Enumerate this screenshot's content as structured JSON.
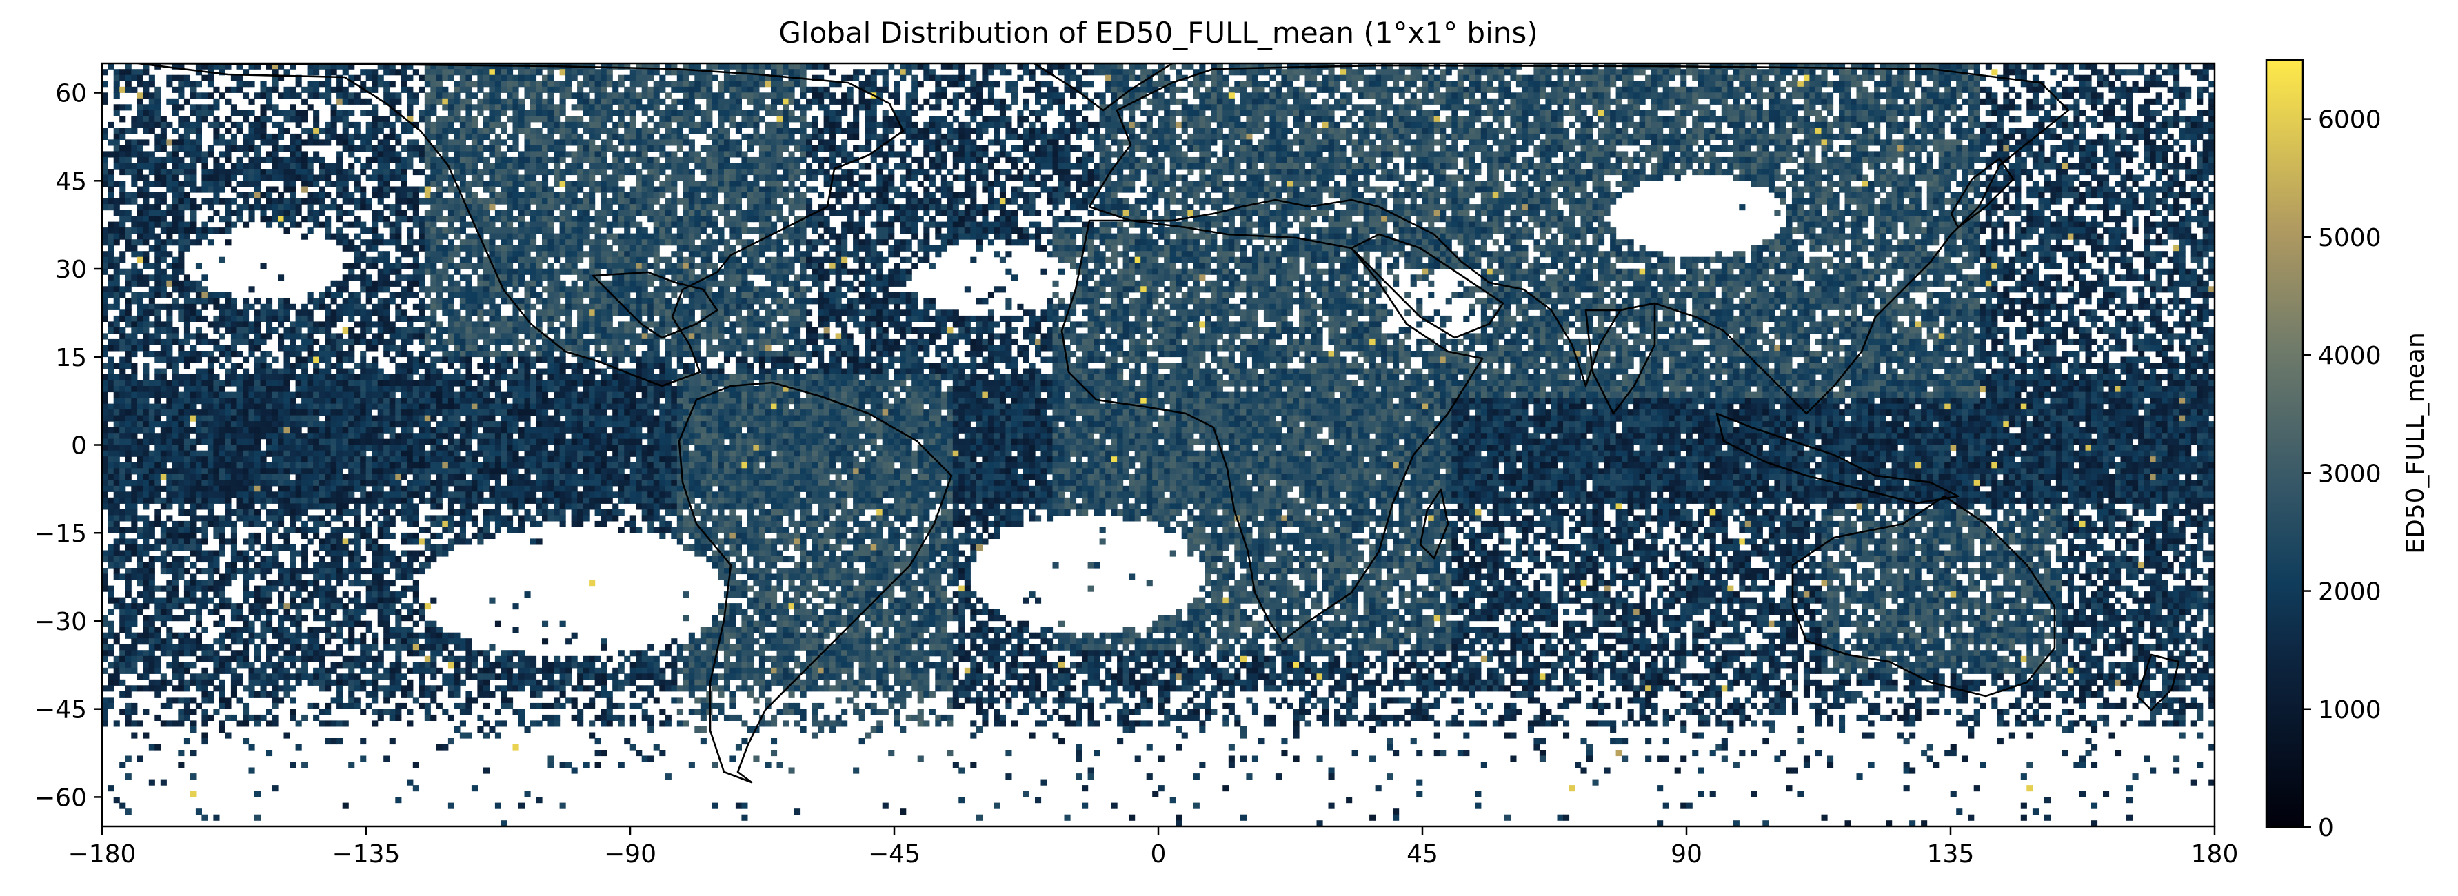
{
  "chart_data": {
    "type": "heatmap",
    "title": "Global Distribution of ED50_FULL_mean (1°x1° bins)",
    "xlabel": "",
    "ylabel": "",
    "xlim": [
      -180,
      180
    ],
    "ylim": [
      -65,
      65
    ],
    "x_ticks": [
      -180,
      -135,
      -90,
      -45,
      0,
      45,
      90,
      135,
      180
    ],
    "x_tick_labels": [
      "−180",
      "−135",
      "−90",
      "−45",
      "0",
      "45",
      "90",
      "135",
      "180"
    ],
    "y_ticks": [
      60,
      45,
      30,
      15,
      0,
      -15,
      -30,
      -45,
      -60
    ],
    "y_tick_labels": [
      "60",
      "45",
      "30",
      "15",
      "0",
      "−15",
      "−30",
      "−45",
      "−60"
    ],
    "bin_size_deg": 1,
    "grid": false,
    "colorbar": {
      "label": "ED50_FULL_mean",
      "range": [
        0,
        6500
      ],
      "ticks": [
        0,
        1000,
        2000,
        3000,
        4000,
        5000,
        6000
      ],
      "tick_labels": [
        "0",
        "1000",
        "2000",
        "3000",
        "4000",
        "5000",
        "6000"
      ],
      "colormap": "cividis-like (black → dark blue → grey-green → yellow)"
    },
    "regional_pattern": [
      {
        "region": "equatorial band (10°S–12°N)",
        "approx_value": 1800,
        "coverage": "dense"
      },
      {
        "region": "Sahara / Sahel and central Africa",
        "approx_value": 2800,
        "coverage": "dense"
      },
      {
        "region": "South America (Amazon to Patagonia)",
        "approx_value": 2600,
        "coverage": "dense"
      },
      {
        "region": "India / South Asia",
        "approx_value": 2700,
        "coverage": "dense"
      },
      {
        "region": "Australia",
        "approx_value": 2600,
        "coverage": "dense"
      },
      {
        "region": "North America and Europe",
        "approx_value": 2200,
        "coverage": "medium"
      },
      {
        "region": "SE Pacific subtropical gyre (15°S–35°S, 120°W–75°W)",
        "approx_value": null,
        "coverage": "empty"
      },
      {
        "region": "South Atlantic gyre (10°S–35°S, 30°W–10°E)",
        "approx_value": null,
        "coverage": "empty"
      },
      {
        "region": "Tibetan Plateau / Taklamakan (30°N–45°N, 78°E–105°E)",
        "approx_value": null,
        "coverage": "empty"
      },
      {
        "region": "Arabian Peninsula interior",
        "approx_value": null,
        "coverage": "sparse"
      },
      {
        "region": "South of 48°S",
        "approx_value": 1400,
        "coverage": "very sparse"
      }
    ]
  }
}
